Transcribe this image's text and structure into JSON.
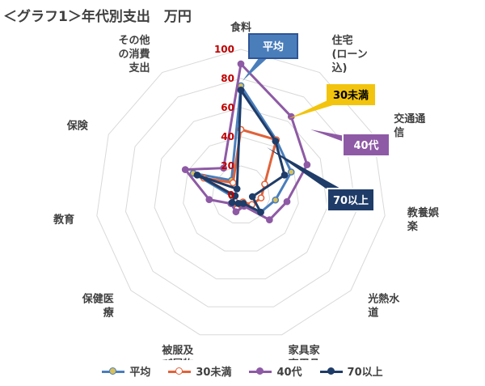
{
  "title": "＜グラフ1＞年代別支出　万円",
  "chart_data": {
    "type": "radar",
    "axes": [
      [
        "食料"
      ],
      [
        "住宅",
        "(ローン",
        "込)"
      ],
      [
        "交通通",
        "信"
      ],
      [
        "教養娯",
        "楽"
      ],
      [
        "光熱水",
        "道"
      ],
      [
        "家具家",
        "事用品"
      ],
      [
        "被服及",
        "び履物"
      ],
      [
        "保健医",
        "療"
      ],
      [
        "教育"
      ],
      [
        "保険"
      ],
      [
        "その他",
        "の消費",
        "支出"
      ]
    ],
    "rlim": [
      0,
      100
    ],
    "ticks": [
      0,
      20,
      40,
      60,
      80,
      100
    ],
    "grid": true,
    "legend_position": "bottom",
    "series": [
      {
        "name": "平均",
        "color": "#4a7ebb",
        "marker_fill": "#d9c05a",
        "values": [
          75,
          45,
          38,
          24,
          18,
          6,
          8,
          7,
          6,
          36,
          12
        ]
      },
      {
        "name": "30未満",
        "color": "#e0623a",
        "marker_fill": "#ffffff",
        "values": [
          45,
          45,
          18,
          14,
          10,
          5,
          10,
          6,
          4,
          28,
          10
        ]
      },
      {
        "name": "40代",
        "color": "#8e5aa5",
        "marker_fill": "#8e5aa5",
        "values": [
          90,
          64,
          50,
          32,
          26,
          8,
          12,
          9,
          22,
          42,
          22
        ]
      },
      {
        "name": "70以上",
        "color": "#1f3c68",
        "marker_fill": "#1f3c68",
        "values": [
          72,
          44,
          33,
          8,
          18,
          6,
          6,
          8,
          4,
          33,
          5
        ]
      }
    ],
    "callouts": [
      {
        "text": "平均",
        "series": 0,
        "style": "dark"
      },
      {
        "text": "30未満",
        "series": 1,
        "style": "light"
      },
      {
        "text": "40代",
        "series": 2,
        "style": "dark"
      },
      {
        "text": "70以上",
        "series": 3,
        "style": "dark"
      }
    ]
  }
}
